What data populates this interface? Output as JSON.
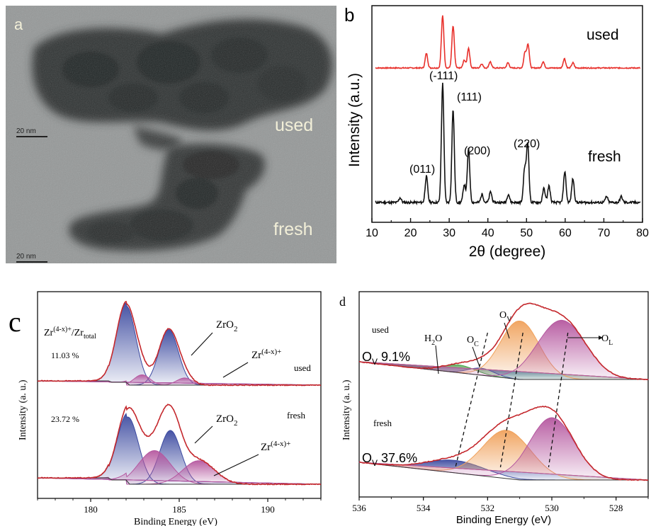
{
  "figure": {
    "panel_a": {
      "letter": "a",
      "label_used": "used",
      "label_fresh": "fresh",
      "scalebar_1": "20 nm",
      "scalebar_2": "20 nm"
    }
  },
  "colors": {
    "xrd_used": "#e8302b",
    "xrd_fresh": "#111111",
    "fit_envelope": "#c4272c",
    "blue_peak": "#3c4aa0",
    "magenta_peak": "#b5579f",
    "orange_peak": "#f0a15b",
    "green_peak": "#4aa34a",
    "tem_background": "#8f9292"
  },
  "chart_data": [
    {
      "panel": "b",
      "type": "line",
      "letter": "b",
      "xlabel": "2θ (degree)",
      "ylabel": "Intensity (a.u.)",
      "xlim": [
        10,
        80
      ],
      "x_ticks": [
        10,
        20,
        30,
        40,
        50,
        60,
        70,
        80
      ],
      "y_ticks_shown": false,
      "series": [
        {
          "name": "used",
          "color": "#e8302b",
          "peaks": [
            [
              24.1,
              0.28
            ],
            [
              28.3,
              1.0
            ],
            [
              31.0,
              0.8
            ],
            [
              33.9,
              0.15
            ],
            [
              35.0,
              0.38
            ],
            [
              38.4,
              0.08
            ],
            [
              40.6,
              0.12
            ],
            [
              45.2,
              0.1
            ],
            [
              49.6,
              0.3
            ],
            [
              50.4,
              0.45
            ],
            [
              54.3,
              0.12
            ],
            [
              59.8,
              0.18
            ],
            [
              62.0,
              0.1
            ]
          ],
          "offset": 1.75,
          "scale": 0.42
        },
        {
          "name": "fresh",
          "color": "#111111",
          "peaks": [
            [
              17.3,
              0.04
            ],
            [
              24.1,
              0.22
            ],
            [
              28.3,
              1.0
            ],
            [
              31.0,
              0.78
            ],
            [
              33.9,
              0.15
            ],
            [
              35.0,
              0.45
            ],
            [
              38.5,
              0.07
            ],
            [
              40.7,
              0.09
            ],
            [
              45.3,
              0.07
            ],
            [
              49.5,
              0.28
            ],
            [
              50.3,
              0.5
            ],
            [
              54.5,
              0.12
            ],
            [
              55.8,
              0.14
            ],
            [
              59.9,
              0.26
            ],
            [
              62.0,
              0.2
            ],
            [
              70.7,
              0.05
            ],
            [
              74.5,
              0.05
            ]
          ],
          "offset": 0.0,
          "scale": 1.0
        }
      ],
      "annotations": [
        "(-111)",
        "(111)",
        "(200)",
        "(011)",
        "(220)"
      ]
    },
    {
      "panel": "c",
      "type": "line",
      "letter": "c",
      "xlabel": "Binding Energy (eV)",
      "ylabel": "Intensity (a. u.)",
      "xlim": [
        177,
        193
      ],
      "x_ticks": [
        180,
        185,
        190
      ],
      "x_reversed": false,
      "used": {
        "label": "used",
        "ratio_label_prefix": "Zr",
        "ratio_label_sup": "(4-x)+",
        "ratio_label_suffix": "/Zr",
        "ratio_label_sub": "total",
        "ratio_value": "11.03 %",
        "peaks": [
          {
            "name": "ZrO2",
            "center": 182.0,
            "height": 1.0,
            "width": 0.55,
            "color": "#3c4aa0"
          },
          {
            "name": "ZrO2",
            "center": 184.4,
            "height": 0.7,
            "width": 0.55,
            "color": "#3c4aa0"
          },
          {
            "name": "Zr(4-x)+",
            "center": 182.9,
            "height": 0.13,
            "width": 0.45,
            "color": "#b5579f"
          },
          {
            "name": "Zr(4-x)+",
            "center": 185.3,
            "height": 0.09,
            "width": 0.45,
            "color": "#b5579f"
          }
        ]
      },
      "fresh": {
        "label": "fresh",
        "ratio_value": "23.72 %",
        "peaks": [
          {
            "name": "ZrO2",
            "center": 182.1,
            "height": 1.0,
            "width": 0.6,
            "color": "#3c4aa0"
          },
          {
            "name": "ZrO2",
            "center": 184.5,
            "height": 0.8,
            "width": 0.6,
            "color": "#3c4aa0"
          },
          {
            "name": "Zr(4-x)+",
            "center": 183.6,
            "height": 0.5,
            "width": 0.9,
            "color": "#b5579f"
          },
          {
            "name": "Zr(4-x)+",
            "center": 186.1,
            "height": 0.35,
            "width": 0.9,
            "color": "#b5579f"
          }
        ]
      },
      "annotations": {
        "zro2": "ZrO",
        "zro2_sub": "2",
        "zr_prefix": "Zr",
        "zr_sup": "(4-x)+"
      }
    },
    {
      "panel": "d",
      "type": "line",
      "letter": "d",
      "xlabel": "Binding Energy (eV)",
      "ylabel": "Intensity (a. u.)",
      "xlim": [
        536,
        527
      ],
      "x_ticks": [
        536,
        534,
        532,
        530,
        528
      ],
      "x_reversed": true,
      "used": {
        "label": "used",
        "ov_prefix": "O",
        "ov_sub": "V",
        "ov_value": " 9.1%",
        "peaks": [
          {
            "name": "H2O",
            "center": 532.9,
            "height": 0.1,
            "width": 0.5,
            "color": "#4aa34a"
          },
          {
            "name": "OC",
            "center": 532.2,
            "height": 0.09,
            "width": 0.4,
            "color": "#3c4aa0"
          },
          {
            "name": "OV",
            "center": 531.0,
            "height": 0.75,
            "width": 0.6,
            "color": "#f0a15b"
          },
          {
            "name": "OL",
            "center": 529.7,
            "height": 0.76,
            "width": 0.75,
            "color": "#b5579f"
          }
        ]
      },
      "fresh": {
        "label": "fresh",
        "ov_prefix": "O",
        "ov_sub": "V",
        "ov_value": " 37.6%",
        "peaks": [
          {
            "name": "OC",
            "center": 533.0,
            "height": 0.16,
            "width": 0.9,
            "color": "#3c4aa0"
          },
          {
            "name": "OV",
            "center": 531.4,
            "height": 0.62,
            "width": 0.75,
            "color": "#f0a15b"
          },
          {
            "name": "OL",
            "center": 530.0,
            "height": 0.8,
            "width": 0.7,
            "color": "#b5579f"
          }
        ]
      },
      "annotations": {
        "h2o_h": "H",
        "h2o_sub": "2",
        "h2o_o": "O",
        "o": "O",
        "c_sub": "C",
        "v_sub": "V",
        "l_sub": "L"
      }
    }
  ]
}
